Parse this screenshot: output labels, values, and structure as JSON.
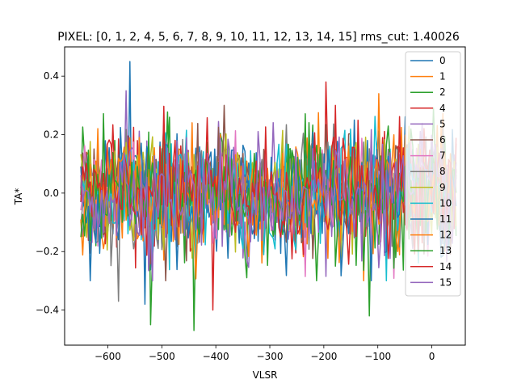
{
  "chart_data": {
    "type": "line",
    "title": "PIXEL: [0, 1, 2, 4, 5, 6, 7, 8, 9, 10, 11, 12, 13, 14, 15]   rms_cut: 1.40026",
    "xlabel": "VLSR",
    "ylabel": "TA*",
    "xlim": [
      -680,
      62
    ],
    "ylim": [
      -0.52,
      0.5
    ],
    "x_range": [
      -650,
      45
    ],
    "x_ticks": [
      -600,
      -500,
      -400,
      -300,
      -200,
      -100,
      0
    ],
    "x_tick_labels": [
      "−600",
      "−500",
      "−400",
      "−300",
      "−200",
      "−100",
      "0"
    ],
    "y_ticks": [
      -0.4,
      -0.2,
      0.0,
      0.2,
      0.4
    ],
    "y_tick_labels": [
      "−0.4",
      "−0.2",
      "0.0",
      "0.2",
      "0.4"
    ],
    "grid": false,
    "legend_position": "top-right",
    "noise_sigma": 0.1,
    "samples_per_series": 200,
    "series": [
      {
        "name": "0",
        "color": "#1f77b4",
        "peaks": [
          [
            -560,
            0.45
          ],
          [
            -530,
            -0.38
          ]
        ]
      },
      {
        "name": "1",
        "color": "#ff7f0e",
        "peaks": [
          [
            -98,
            0.34
          ]
        ]
      },
      {
        "name": "2",
        "color": "#2ca02c",
        "peaks": [
          [
            -442,
            -0.47
          ],
          [
            -117,
            -0.42
          ],
          [
            -520,
            -0.45
          ]
        ]
      },
      {
        "name": "4",
        "color": "#d62728",
        "peaks": [
          [
            -405,
            -0.4
          ],
          [
            -196,
            0.38
          ]
        ]
      },
      {
        "name": "5",
        "color": "#9467bd",
        "peaks": [
          [
            -565,
            0.35
          ]
        ]
      },
      {
        "name": "6",
        "color": "#8c564b",
        "peaks": []
      },
      {
        "name": "7",
        "color": "#e377c2",
        "peaks": []
      },
      {
        "name": "8",
        "color": "#7f7f7f",
        "peaks": [
          [
            -580,
            -0.37
          ]
        ]
      },
      {
        "name": "9",
        "color": "#bcbd22",
        "peaks": []
      },
      {
        "name": "10",
        "color": "#17becf",
        "peaks": []
      },
      {
        "name": "11",
        "color": "#1f77b4",
        "peaks": []
      },
      {
        "name": "12",
        "color": "#ff7f0e",
        "peaks": []
      },
      {
        "name": "13",
        "color": "#2ca02c",
        "peaks": []
      },
      {
        "name": "14",
        "color": "#d62728",
        "peaks": []
      },
      {
        "name": "15",
        "color": "#9467bd",
        "peaks": []
      }
    ]
  }
}
